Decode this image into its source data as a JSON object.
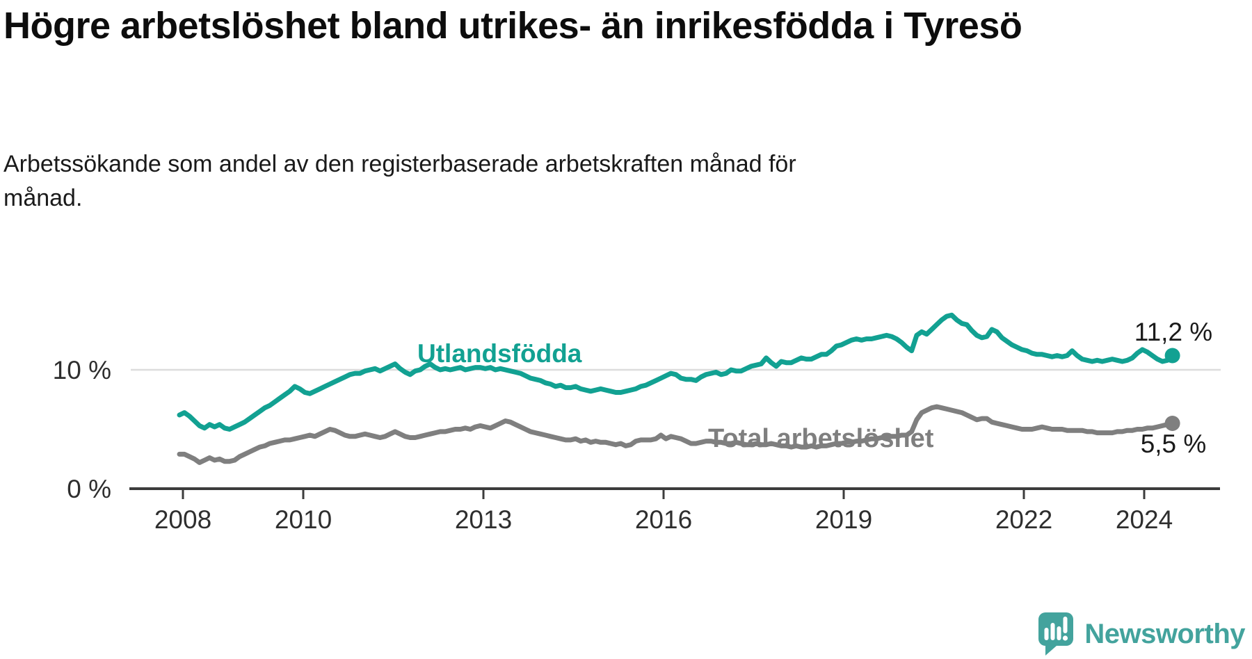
{
  "header": {
    "title": "Högre arbetslöshet bland utrikes- än inrikesfödda i Tyresö",
    "subtitle": "Arbetssökande som andel av den registerbaserade arbetskraften månad för månad."
  },
  "branding": {
    "logo_text": "Newsworthy",
    "logo_color": "#43a39d",
    "logo_icon": "speech-bubble-bar-chart-icon"
  },
  "chart_data": {
    "type": "line",
    "unit": "percent",
    "frequency": "monthly",
    "x_start": "2008-01",
    "x_end": "2024-07",
    "grid": "single-horizontal-gridline-at-10",
    "legend_position": "inline-labels-on-lines",
    "y_axis": {
      "ticks": [
        "0 %",
        "10 %"
      ],
      "range": [
        0,
        18.5
      ],
      "gridlines": [
        10
      ]
    },
    "x_tick_labels": [
      "2008",
      "2010",
      "2013",
      "2016",
      "2019",
      "2022",
      "2024"
    ],
    "series": [
      {
        "id": "utlandsfodda",
        "label": "Utlandsfödda",
        "color": "#12a192",
        "end_label": "11,2 %",
        "end_value": 11.2,
        "values": [
          6.2,
          6.4,
          6.1,
          5.7,
          5.3,
          5.1,
          5.4,
          5.2,
          5.4,
          5.1,
          5.0,
          5.2,
          5.4,
          5.6,
          5.9,
          6.2,
          6.5,
          6.8,
          7.0,
          7.3,
          7.6,
          7.9,
          8.2,
          8.6,
          8.4,
          8.1,
          8.0,
          8.2,
          8.4,
          8.6,
          8.8,
          9.0,
          9.2,
          9.4,
          9.6,
          9.7,
          9.7,
          9.9,
          10.0,
          10.1,
          9.9,
          10.1,
          10.3,
          10.5,
          10.1,
          9.8,
          9.6,
          9.9,
          10.0,
          10.3,
          10.5,
          10.2,
          10.0,
          10.1,
          10.0,
          10.1,
          10.2,
          10.0,
          10.1,
          10.2,
          10.2,
          10.1,
          10.2,
          10.0,
          10.1,
          10.0,
          9.9,
          9.8,
          9.7,
          9.5,
          9.3,
          9.2,
          9.1,
          8.9,
          8.8,
          8.6,
          8.7,
          8.5,
          8.5,
          8.6,
          8.4,
          8.3,
          8.2,
          8.3,
          8.4,
          8.3,
          8.2,
          8.1,
          8.1,
          8.2,
          8.3,
          8.4,
          8.6,
          8.7,
          8.9,
          9.1,
          9.3,
          9.5,
          9.7,
          9.6,
          9.3,
          9.2,
          9.2,
          9.1,
          9.4,
          9.6,
          9.7,
          9.8,
          9.6,
          9.7,
          10.0,
          9.9,
          9.9,
          10.1,
          10.3,
          10.4,
          10.5,
          11.0,
          10.6,
          10.3,
          10.7,
          10.6,
          10.6,
          10.8,
          11.0,
          10.9,
          10.9,
          11.1,
          11.3,
          11.3,
          11.6,
          12.0,
          12.1,
          12.3,
          12.5,
          12.6,
          12.5,
          12.6,
          12.6,
          12.7,
          12.8,
          12.9,
          12.8,
          12.6,
          12.3,
          11.9,
          11.6,
          12.9,
          13.2,
          13.0,
          13.4,
          13.8,
          14.2,
          14.5,
          14.6,
          14.2,
          13.9,
          13.8,
          13.3,
          12.9,
          12.7,
          12.8,
          13.4,
          13.2,
          12.7,
          12.4,
          12.1,
          11.9,
          11.7,
          11.6,
          11.4,
          11.3,
          11.3,
          11.2,
          11.1,
          11.2,
          11.1,
          11.2,
          11.6,
          11.2,
          10.9,
          10.8,
          10.7,
          10.8,
          10.7,
          10.8,
          10.9,
          10.8,
          10.7,
          10.8,
          11.0,
          11.4,
          11.7,
          11.5,
          11.2,
          10.9,
          10.7,
          10.8,
          11.2
        ]
      },
      {
        "id": "total",
        "label": "Total arbetslöshet",
        "color": "#7f7f7f",
        "end_label": "5,5 %",
        "end_value": 5.5,
        "values": [
          2.9,
          2.9,
          2.7,
          2.5,
          2.2,
          2.4,
          2.6,
          2.4,
          2.5,
          2.3,
          2.3,
          2.4,
          2.7,
          2.9,
          3.1,
          3.3,
          3.5,
          3.6,
          3.8,
          3.9,
          4.0,
          4.1,
          4.1,
          4.2,
          4.3,
          4.4,
          4.5,
          4.4,
          4.6,
          4.8,
          5.0,
          4.9,
          4.7,
          4.5,
          4.4,
          4.4,
          4.5,
          4.6,
          4.5,
          4.4,
          4.3,
          4.4,
          4.6,
          4.8,
          4.6,
          4.4,
          4.3,
          4.3,
          4.4,
          4.5,
          4.6,
          4.7,
          4.8,
          4.8,
          4.9,
          5.0,
          5.0,
          5.1,
          5.0,
          5.2,
          5.3,
          5.2,
          5.1,
          5.3,
          5.5,
          5.7,
          5.6,
          5.4,
          5.2,
          5.0,
          4.8,
          4.7,
          4.6,
          4.5,
          4.4,
          4.3,
          4.2,
          4.1,
          4.1,
          4.2,
          4.0,
          4.1,
          3.9,
          4.0,
          3.9,
          3.9,
          3.8,
          3.7,
          3.8,
          3.6,
          3.7,
          4.0,
          4.1,
          4.1,
          4.1,
          4.2,
          4.5,
          4.2,
          4.4,
          4.3,
          4.2,
          4.0,
          3.8,
          3.8,
          3.9,
          4.0,
          4.0,
          3.9,
          3.9,
          3.8,
          3.8,
          3.9,
          3.8,
          3.7,
          3.7,
          3.8,
          3.7,
          3.7,
          3.8,
          3.7,
          3.6,
          3.6,
          3.5,
          3.6,
          3.5,
          3.5,
          3.6,
          3.5,
          3.6,
          3.6,
          3.7,
          3.8,
          3.8,
          3.9,
          3.9,
          4.0,
          4.0,
          4.1,
          4.2,
          4.2,
          4.3,
          4.3,
          4.4,
          4.4,
          4.5,
          4.5,
          4.8,
          5.8,
          6.4,
          6.6,
          6.8,
          6.9,
          6.8,
          6.7,
          6.6,
          6.5,
          6.4,
          6.2,
          6.0,
          5.8,
          5.9,
          5.9,
          5.6,
          5.5,
          5.4,
          5.3,
          5.2,
          5.1,
          5.0,
          5.0,
          5.0,
          5.1,
          5.2,
          5.1,
          5.0,
          5.0,
          5.0,
          4.9,
          4.9,
          4.9,
          4.9,
          4.8,
          4.8,
          4.7,
          4.7,
          4.7,
          4.7,
          4.8,
          4.8,
          4.9,
          4.9,
          5.0,
          5.0,
          5.1,
          5.1,
          5.2,
          5.3,
          5.4,
          5.5
        ]
      }
    ]
  }
}
